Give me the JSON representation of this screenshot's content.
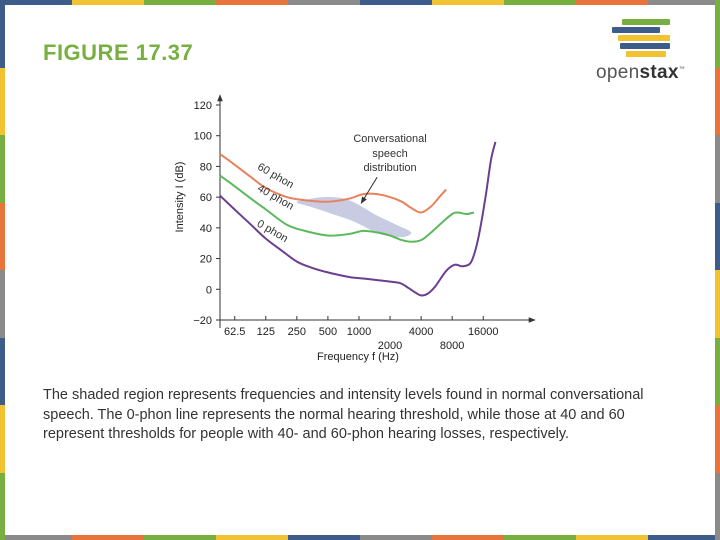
{
  "slide": {
    "title": "FIGURE 17.37",
    "caption": "The shaded region represents frequencies and intensity levels found in normal conversational speech. The 0-phon line represents the normal hearing threshold, while those at 40 and 60 represent thresholds for people with 40- and 60-phon hearing losses, respectively."
  },
  "logo": {
    "name": "openstax",
    "icon": "stacked-books-logo-icon"
  },
  "border_colors": [
    "#3e5c8a",
    "#f1c232",
    "#77b041",
    "#e8743b",
    "#8a8a8a",
    "#3e5c8a",
    "#f1c232",
    "#77b041",
    "#e8743b",
    "#8a8a8a"
  ],
  "chart_data": {
    "type": "line",
    "xlabel": "Frequency f (Hz)",
    "ylabel": "Intensity I (dB)",
    "xscale": "log",
    "xlim": [
      45,
      26000
    ],
    "ylim": [
      -20,
      120
    ],
    "x_ticks": [
      62.5,
      125,
      250,
      500,
      1000,
      2000,
      4000,
      8000,
      16000
    ],
    "x_tick_labels": [
      "62.5",
      "125",
      "250",
      "500",
      "1000",
      "2000",
      "4000",
      "8000",
      "16000"
    ],
    "y_ticks": [
      -20,
      0,
      20,
      40,
      60,
      80,
      100,
      120
    ],
    "y_tick_labels": [
      "−20",
      "0",
      "20",
      "40",
      "60",
      "80",
      "100",
      "120"
    ],
    "grid": false,
    "series": [
      {
        "name": "60 phon",
        "color": "#e8825a",
        "points": [
          [
            45,
            88
          ],
          [
            60,
            82
          ],
          [
            90,
            73
          ],
          [
            125,
            66
          ],
          [
            200,
            60
          ],
          [
            300,
            58
          ],
          [
            500,
            57
          ],
          [
            800,
            59
          ],
          [
            1100,
            62
          ],
          [
            1500,
            62
          ],
          [
            2000,
            60
          ],
          [
            2600,
            57
          ],
          [
            3200,
            53
          ],
          [
            4000,
            50
          ],
          [
            5000,
            54
          ],
          [
            6000,
            60
          ],
          [
            7000,
            65
          ]
        ]
      },
      {
        "name": "40 phon",
        "color": "#5cb85c",
        "points": [
          [
            45,
            74
          ],
          [
            60,
            68
          ],
          [
            90,
            59
          ],
          [
            125,
            52
          ],
          [
            200,
            42
          ],
          [
            300,
            38
          ],
          [
            500,
            35
          ],
          [
            800,
            36
          ],
          [
            1100,
            38
          ],
          [
            1500,
            37
          ],
          [
            2000,
            35
          ],
          [
            2600,
            32
          ],
          [
            3200,
            31
          ],
          [
            4000,
            32
          ],
          [
            5000,
            37
          ],
          [
            6500,
            44
          ],
          [
            8000,
            49
          ],
          [
            9000,
            50
          ],
          [
            11000,
            49
          ],
          [
            13000,
            50
          ]
        ]
      },
      {
        "name": "0 phon",
        "color": "#6b3f8f",
        "points": [
          [
            45,
            61
          ],
          [
            60,
            53
          ],
          [
            90,
            42
          ],
          [
            125,
            33
          ],
          [
            180,
            25
          ],
          [
            250,
            18
          ],
          [
            350,
            14
          ],
          [
            500,
            11
          ],
          [
            800,
            8
          ],
          [
            1100,
            7
          ],
          [
            1500,
            6
          ],
          [
            2000,
            5
          ],
          [
            2500,
            4
          ],
          [
            3000,
            1
          ],
          [
            3500,
            -2
          ],
          [
            4000,
            -4
          ],
          [
            4600,
            -3
          ],
          [
            5500,
            2
          ],
          [
            7000,
            12
          ],
          [
            8500,
            16
          ],
          [
            10000,
            15
          ],
          [
            12000,
            17
          ],
          [
            13500,
            26
          ],
          [
            15000,
            40
          ],
          [
            17000,
            62
          ],
          [
            19000,
            84
          ],
          [
            21000,
            96
          ]
        ]
      }
    ],
    "region": {
      "name": "Conversational speech distribution",
      "color": "#c5c8e0",
      "points": [
        [
          250,
          57
        ],
        [
          450,
          60
        ],
        [
          800,
          58
        ],
        [
          1500,
          48
        ],
        [
          2300,
          42
        ],
        [
          3200,
          37
        ],
        [
          2600,
          34
        ],
        [
          1600,
          36
        ],
        [
          900,
          44
        ],
        [
          500,
          50
        ],
        [
          330,
          54
        ]
      ]
    },
    "annotations": [
      {
        "text": "Conversational",
        "x": 2000,
        "y": 96
      },
      {
        "text": "speech",
        "x": 2000,
        "y": 86
      },
      {
        "text": "distribution",
        "x": 2000,
        "y": 77
      },
      {
        "text": "60 phon",
        "x": 150,
        "y": 72
      },
      {
        "text": "40 phon",
        "x": 150,
        "y": 58
      },
      {
        "text": "0 phon",
        "x": 140,
        "y": 36
      }
    ]
  }
}
